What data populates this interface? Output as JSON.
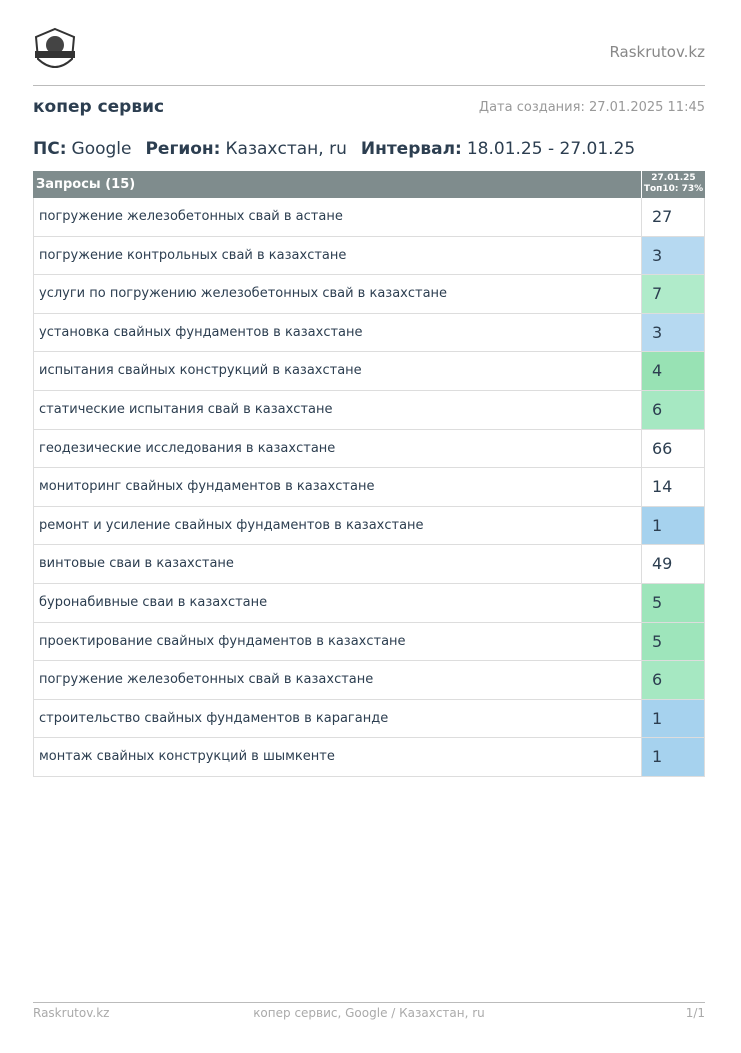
{
  "header": {
    "site": "Raskrutov.kz",
    "title": "копер сервис",
    "created": "Дата создания: 27.01.2025 11:45"
  },
  "params": [
    {
      "label": "ПС:",
      "value": "Google"
    },
    {
      "label": "Регион:",
      "value": "Казахстан, ru"
    },
    {
      "label": "Интервал:",
      "value": "18.01.25 - 27.01.25"
    }
  ],
  "table": {
    "query_header": "Запросы (15)",
    "date_header": "27.01.25",
    "top_header": "Топ10: 73%",
    "rows": [
      {
        "query": "погружение железобетонных свай в астане",
        "position": 27,
        "color": "#ffffff"
      },
      {
        "query": "погружение контрольных свай в казахстане",
        "position": 3,
        "color": "#b6d9f1"
      },
      {
        "query": "услуги по погружению железобетонных свай в казахстане",
        "position": 7,
        "color": "#b0ebca"
      },
      {
        "query": "установка свайных фундаментов в казахстане",
        "position": 3,
        "color": "#b6d9f1"
      },
      {
        "query": "испытания свайных конструкций в казахстане",
        "position": 4,
        "color": "#98e2b4"
      },
      {
        "query": "статические испытания свай в казахстане",
        "position": 6,
        "color": "#a6e8c2"
      },
      {
        "query": "геодезические исследования в казахстане",
        "position": 66,
        "color": "#ffffff"
      },
      {
        "query": "мониторинг свайных фундаментов в казахстане",
        "position": 14,
        "color": "#ffffff"
      },
      {
        "query": "ремонт и усиление свайных фундаментов в казахстане",
        "position": 1,
        "color": "#a6d2ee"
      },
      {
        "query": "винтовые сваи в казахстане",
        "position": 49,
        "color": "#ffffff"
      },
      {
        "query": "буронабивные сваи в казахстане",
        "position": 5,
        "color": "#9ee5bb"
      },
      {
        "query": "проектирование свайных фундаментов в казахстане",
        "position": 5,
        "color": "#9ee5bb"
      },
      {
        "query": "погружение железобетонных свай в казахстане",
        "position": 6,
        "color": "#a6e8c2"
      },
      {
        "query": "строительство свайных фундаментов в караганде",
        "position": 1,
        "color": "#a6d2ee"
      },
      {
        "query": "монтаж свайных конструкций в шымкенте",
        "position": 1,
        "color": "#a6d2ee"
      }
    ]
  },
  "footer": {
    "left": "Raskrutov.kz",
    "center": "копер сервис, Google / Казахстан, ru",
    "right": "1/1"
  }
}
